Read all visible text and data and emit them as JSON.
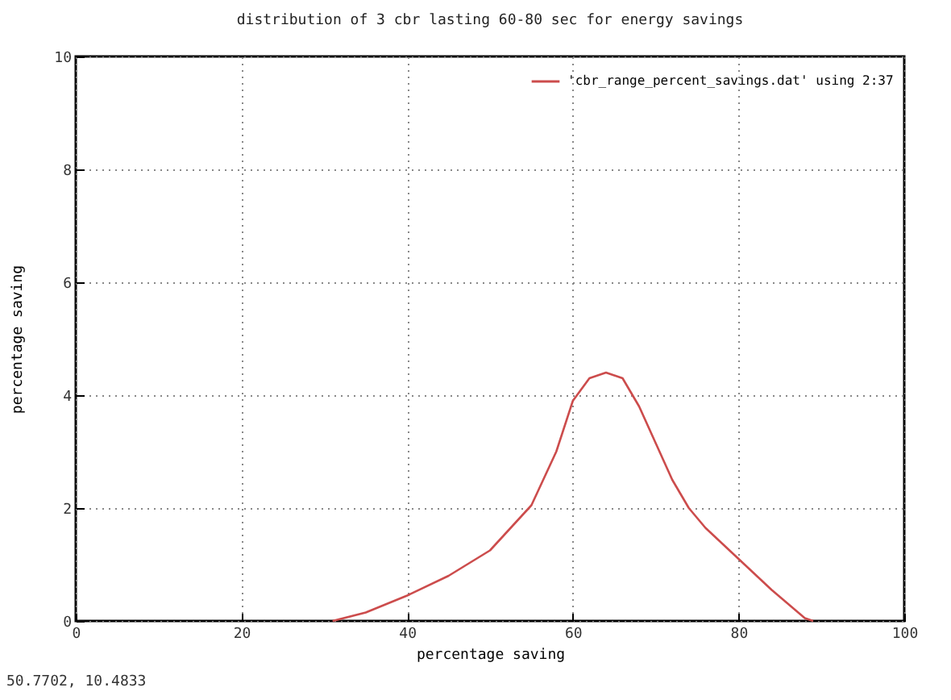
{
  "chart_data": {
    "type": "line",
    "title": "distribution of 3 cbr lasting 60-80 sec for energy savings",
    "xlabel": "percentage saving",
    "ylabel": "percentage saving",
    "x": [
      31,
      35,
      40,
      45,
      50,
      55,
      58,
      60,
      62,
      64,
      66,
      68,
      70,
      72,
      74,
      76,
      80,
      84,
      88,
      89
    ],
    "series": [
      {
        "name": "'cbr_range_percent_savings.dat' using 2:37",
        "color": "#cc4c4c",
        "values": [
          0,
          0.15,
          0.45,
          0.8,
          1.25,
          2.05,
          3.0,
          3.9,
          4.3,
          4.4,
          4.3,
          3.8,
          3.15,
          2.5,
          2.0,
          1.65,
          1.1,
          0.55,
          0.05,
          0
        ]
      }
    ],
    "xlim": [
      0,
      100
    ],
    "xticks": [
      0,
      20,
      40,
      60,
      80,
      100
    ],
    "ylim": [
      0,
      10
    ],
    "yticks": [
      0,
      2,
      4,
      6,
      8,
      10
    ],
    "grid": true,
    "legend": "top right",
    "line_style": "solid",
    "marker": "none",
    "annotations": [
      "50.7702,  10.4833"
    ]
  }
}
